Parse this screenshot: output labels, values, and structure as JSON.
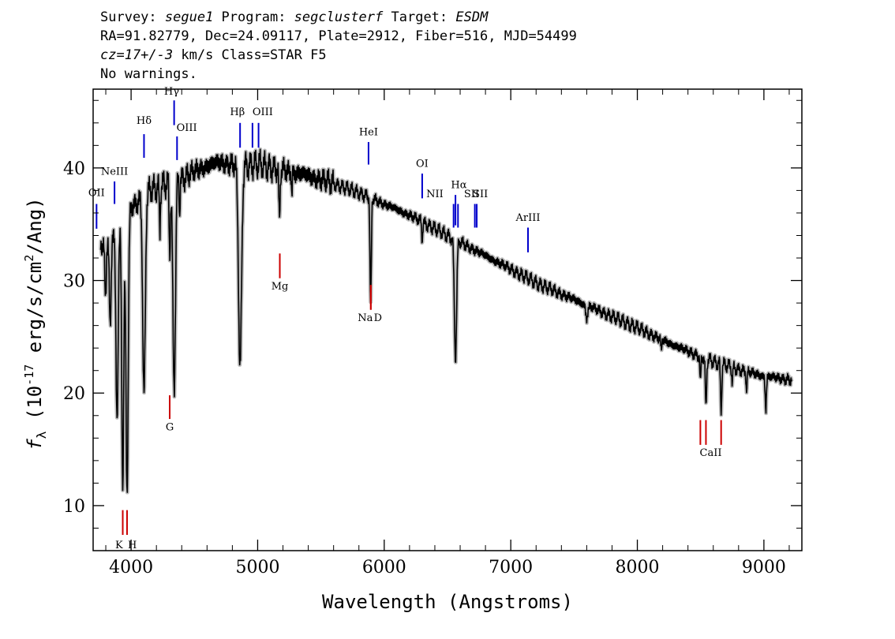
{
  "header": {
    "line1": {
      "survey_label": "Survey: ",
      "survey": "segue1",
      "program_label": " Program: ",
      "program": "segclusterf",
      "target_label": " Target: ",
      "target": "ESDM"
    },
    "line2": "RA=91.82779, Dec=24.09117, Plate=2912, Fiber=516, MJD=54499",
    "line3": {
      "cz": "cz=17+/-3",
      "rest": " km/s Class=STAR F5"
    },
    "line4": "No warnings."
  },
  "chart_data": {
    "type": "line",
    "xlabel": "Wavelength (Angstroms)",
    "ylabel_prefix": "f",
    "ylabel_subscript": "λ",
    "ylabel_rest": " (10",
    "ylabel_exp1": "-17",
    "ylabel_mid": " erg/s/cm",
    "ylabel_exp2": "2",
    "ylabel_end": "/Ang)",
    "xlim": [
      3700,
      9300
    ],
    "ylim": [
      6,
      47
    ],
    "xticks": [
      4000,
      5000,
      6000,
      7000,
      8000,
      9000
    ],
    "yticks": [
      10,
      20,
      30,
      40
    ],
    "colors": {
      "spectrum": "#000000",
      "error_band": "#bbbbbb",
      "emission": "#0000cc",
      "absorption": "#cc0000"
    },
    "continuum": [
      {
        "x": 3760,
        "y": 33
      },
      {
        "x": 3850,
        "y": 34
      },
      {
        "x": 3950,
        "y": 36
      },
      {
        "x": 4050,
        "y": 37
      },
      {
        "x": 4150,
        "y": 38
      },
      {
        "x": 4250,
        "y": 38.5
      },
      {
        "x": 4400,
        "y": 39
      },
      {
        "x": 4550,
        "y": 40
      },
      {
        "x": 4700,
        "y": 40.5
      },
      {
        "x": 4850,
        "y": 40.2
      },
      {
        "x": 5000,
        "y": 40.3
      },
      {
        "x": 5200,
        "y": 39.8
      },
      {
        "x": 5400,
        "y": 39.3
      },
      {
        "x": 5600,
        "y": 38.6
      },
      {
        "x": 5800,
        "y": 37.8
      },
      {
        "x": 6000,
        "y": 36.8
      },
      {
        "x": 6200,
        "y": 35.8
      },
      {
        "x": 6400,
        "y": 34.6
      },
      {
        "x": 6600,
        "y": 33.4
      },
      {
        "x": 6800,
        "y": 32.2
      },
      {
        "x": 7000,
        "y": 31
      },
      {
        "x": 7200,
        "y": 29.8
      },
      {
        "x": 7400,
        "y": 28.8
      },
      {
        "x": 7600,
        "y": 27.8
      },
      {
        "x": 7800,
        "y": 26.8
      },
      {
        "x": 8000,
        "y": 25.8
      },
      {
        "x": 8200,
        "y": 24.7
      },
      {
        "x": 8400,
        "y": 23.7
      },
      {
        "x": 8600,
        "y": 22.8
      },
      {
        "x": 8800,
        "y": 22.1
      },
      {
        "x": 9000,
        "y": 21.5
      },
      {
        "x": 9200,
        "y": 21.2
      }
    ],
    "absorption_features": [
      {
        "x": 3798,
        "depth": 5,
        "width": 6
      },
      {
        "x": 3835,
        "depth": 8,
        "width": 7
      },
      {
        "x": 3889,
        "depth": 17,
        "width": 9
      },
      {
        "x": 3934,
        "depth": 24,
        "width": 8
      },
      {
        "x": 3968,
        "depth": 25,
        "width": 9
      },
      {
        "x": 4102,
        "depth": 18,
        "width": 10
      },
      {
        "x": 4227,
        "depth": 4,
        "width": 4
      },
      {
        "x": 4305,
        "depth": 6,
        "width": 5
      },
      {
        "x": 4340,
        "depth": 18.5,
        "width": 10
      },
      {
        "x": 4383,
        "depth": 3,
        "width": 3
      },
      {
        "x": 4861,
        "depth": 18,
        "width": 12
      },
      {
        "x": 5172,
        "depth": 4.5,
        "width": 5
      },
      {
        "x": 5270,
        "depth": 2,
        "width": 3
      },
      {
        "x": 5890,
        "depth": 6.5,
        "width": 4
      },
      {
        "x": 5896,
        "depth": 6,
        "width": 4
      },
      {
        "x": 6300,
        "depth": 1.5,
        "width": 4
      },
      {
        "x": 6563,
        "depth": 10.5,
        "width": 9
      },
      {
        "x": 7600,
        "depth": 1.2,
        "width": 8
      },
      {
        "x": 8189,
        "depth": 1,
        "width": 4
      },
      {
        "x": 8498,
        "depth": 2.5,
        "width": 4
      },
      {
        "x": 8542,
        "depth": 4.5,
        "width": 5
      },
      {
        "x": 8662,
        "depth": 4,
        "width": 5
      },
      {
        "x": 8750,
        "depth": 1.3,
        "width": 4
      },
      {
        "x": 8863,
        "depth": 1.8,
        "width": 4
      },
      {
        "x": 9015,
        "depth": 3,
        "width": 5
      },
      {
        "x": 9230,
        "depth": 1,
        "width": 5
      }
    ],
    "emission_lines": [
      {
        "label": "OII",
        "x": 3727,
        "ylo": 34.6,
        "yhi": 36.8,
        "lx": 3727,
        "ly": 37.5
      },
      {
        "label": "NeIII",
        "x": 3869,
        "ylo": 36.8,
        "yhi": 38.8,
        "lx": 3869,
        "ly": 39.4
      },
      {
        "label": "Hδ",
        "x": 4102,
        "ylo": 40.9,
        "yhi": 43,
        "lx": 4102,
        "ly": 43.9
      },
      {
        "label": "Hγ",
        "x": 4340,
        "ylo": 43.8,
        "yhi": 46,
        "lx": 4320,
        "ly": 46.5
      },
      {
        "label": "OIII",
        "x": 4363,
        "ylo": 40.7,
        "yhi": 42.8,
        "lx": 4440,
        "ly": 43.3
      },
      {
        "label": "Hβ",
        "x": 4861,
        "ylo": 41.8,
        "yhi": 44,
        "lx": 4840,
        "ly": 44.7
      },
      {
        "label": "OIII",
        "x": 4959,
        "ylo": 41.8,
        "yhi": 44,
        "lx": 5040,
        "ly": 44.7
      },
      {
        "label": "OIII",
        "x": 5007,
        "ylo": 41.8,
        "yhi": 44,
        "lx": "",
        "ly": ""
      },
      {
        "label": "HeI",
        "x": 5876,
        "ylo": 40.3,
        "yhi": 42.3,
        "lx": 5876,
        "ly": 42.9
      },
      {
        "label": "OI",
        "x": 6300,
        "ylo": 37.3,
        "yhi": 39.5,
        "lx": 6300,
        "ly": 40.1
      },
      {
        "label": "NII",
        "x": 6548,
        "ylo": 34.7,
        "yhi": 36.8,
        "lx": 6400,
        "ly": 37.4
      },
      {
        "label": "Hα",
        "x": 6563,
        "ylo": 34.9,
        "yhi": 37.6,
        "lx": 6590,
        "ly": 38.2
      },
      {
        "label": "NII",
        "x": 6583,
        "ylo": 34.7,
        "yhi": 36.8,
        "lx": "",
        "ly": ""
      },
      {
        "label": "SII",
        "x": 6716,
        "ylo": 34.7,
        "yhi": 36.8,
        "lx": 6760,
        "ly": 37.4
      },
      {
        "label": "SII",
        "x": 6731,
        "ylo": 34.7,
        "yhi": 36.8,
        "lx": 6690,
        "ly": 37.4
      },
      {
        "label": "ArIII",
        "x": 7136,
        "ylo": 32.5,
        "yhi": 34.7,
        "lx": 7136,
        "ly": 35.3
      }
    ],
    "absorption_lines": [
      {
        "label": "K",
        "x": 3934,
        "ylo": 7.4,
        "yhi": 9.6,
        "lx": 3905,
        "ly": 6.2
      },
      {
        "label": "H",
        "x": 3968,
        "ylo": 7.4,
        "yhi": 9.6,
        "lx": 4010,
        "ly": 6.2
      },
      {
        "label": "G",
        "x": 4305,
        "ylo": 17.7,
        "yhi": 19.8,
        "lx": 4305,
        "ly": 16.7
      },
      {
        "label": "Mg",
        "x": 5175,
        "ylo": 30.2,
        "yhi": 32.4,
        "lx": 5175,
        "ly": 29.2
      },
      {
        "label": "Na",
        "x": 5894,
        "ylo": 27.4,
        "yhi": 29.6,
        "lx": 5850,
        "ly": 26.4
      },
      {
        "label": "D",
        "x": 5894,
        "ylo": 27.4,
        "yhi": 29.6,
        "lx": 5950,
        "ly": 26.4
      },
      {
        "label": "CaII",
        "x": 8498,
        "ylo": 15.4,
        "yhi": 17.6,
        "lx": 8580,
        "ly": 14.4
      },
      {
        "label": "",
        "x": 8542,
        "ylo": 15.4,
        "yhi": 17.6,
        "lx": "",
        "ly": ""
      },
      {
        "label": "",
        "x": 8662,
        "ylo": 15.4,
        "yhi": 17.6,
        "lx": "",
        "ly": ""
      }
    ]
  }
}
